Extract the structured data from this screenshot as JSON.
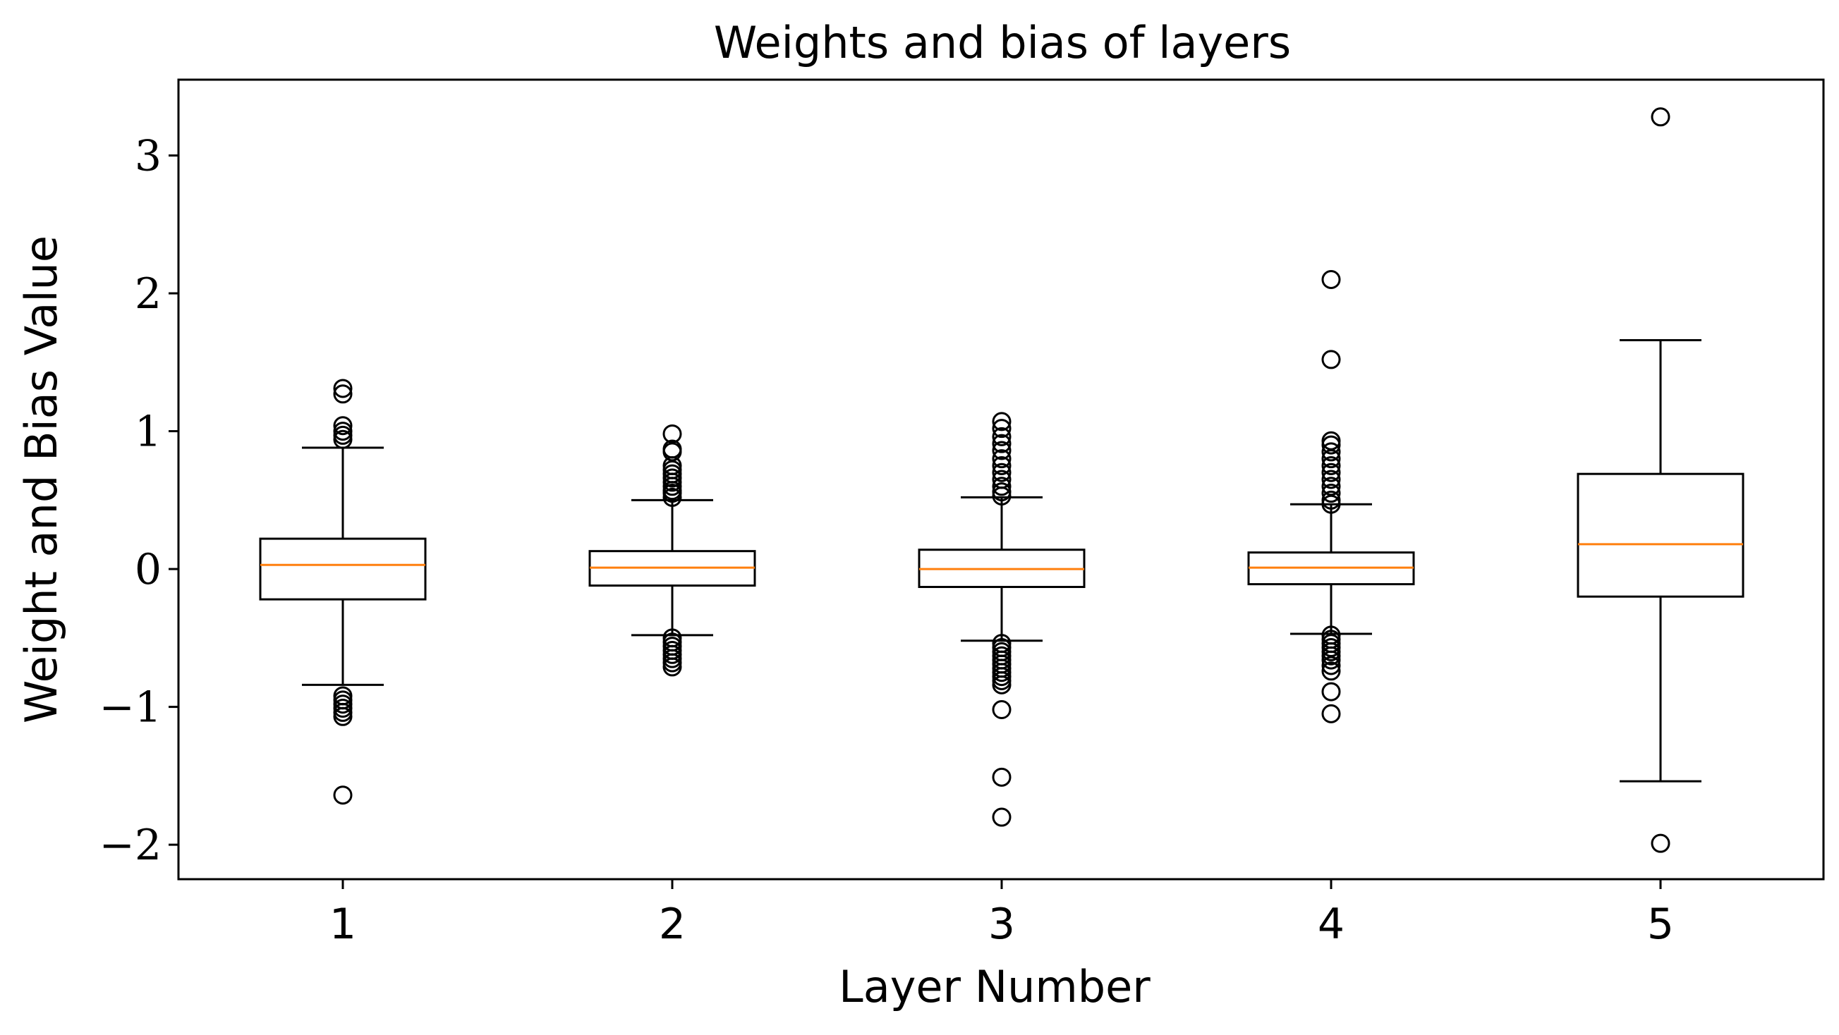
{
  "chart_data": {
    "type": "box",
    "title": "Weights and bias of layers",
    "xlabel": "Layer Number",
    "ylabel": "Weight and Bias Value",
    "categories": [
      "1",
      "2",
      "3",
      "4",
      "5"
    ],
    "ylim": [
      -2.25,
      3.55
    ],
    "yticks": [
      -2,
      -1,
      0,
      1,
      2,
      3
    ],
    "ytick_labels": [
      "−2",
      "−1",
      "0",
      "1",
      "2",
      "3"
    ],
    "median_color": "#ff7f0e",
    "box_color": "#000000",
    "grid": false,
    "boxes": [
      {
        "category": "1",
        "whisker_low": -0.84,
        "q1": -0.22,
        "median": 0.03,
        "q3": 0.22,
        "whisker_high": 0.88,
        "outliers": [
          1.31,
          1.27,
          1.04,
          1.0,
          0.97,
          0.94,
          -0.92,
          -0.95,
          -0.98,
          -1.01,
          -1.04,
          -1.07,
          -1.64
        ]
      },
      {
        "category": "2",
        "whisker_low": -0.48,
        "q1": -0.12,
        "median": 0.01,
        "q3": 0.13,
        "whisker_high": 0.5,
        "outliers": [
          0.98,
          0.87,
          0.85,
          0.75,
          0.72,
          0.69,
          0.66,
          0.63,
          0.6,
          0.57,
          0.55,
          0.52,
          -0.5,
          -0.53,
          -0.56,
          -0.59,
          -0.62,
          -0.65,
          -0.68,
          -0.71
        ]
      },
      {
        "category": "3",
        "whisker_low": -0.52,
        "q1": -0.13,
        "median": 0.0,
        "q3": 0.14,
        "whisker_high": 0.52,
        "outliers": [
          1.07,
          1.02,
          0.96,
          0.91,
          0.86,
          0.8,
          0.75,
          0.7,
          0.65,
          0.6,
          0.56,
          0.53,
          -0.54,
          -0.57,
          -0.6,
          -0.63,
          -0.66,
          -0.69,
          -0.72,
          -0.75,
          -0.78,
          -0.81,
          -0.84,
          -1.02,
          -1.51,
          -1.8
        ]
      },
      {
        "category": "4",
        "whisker_low": -0.47,
        "q1": -0.11,
        "median": 0.01,
        "q3": 0.12,
        "whisker_high": 0.47,
        "outliers": [
          2.1,
          1.52,
          0.93,
          0.9,
          0.85,
          0.8,
          0.75,
          0.7,
          0.65,
          0.6,
          0.55,
          0.5,
          0.47,
          -0.48,
          -0.51,
          -0.54,
          -0.57,
          -0.6,
          -0.63,
          -0.66,
          -0.7,
          -0.74,
          -0.89,
          -1.05
        ]
      },
      {
        "category": "5",
        "whisker_low": -1.54,
        "q1": -0.2,
        "median": 0.18,
        "q3": 0.69,
        "whisker_high": 1.66,
        "outliers": [
          3.28,
          -1.99
        ]
      }
    ]
  }
}
